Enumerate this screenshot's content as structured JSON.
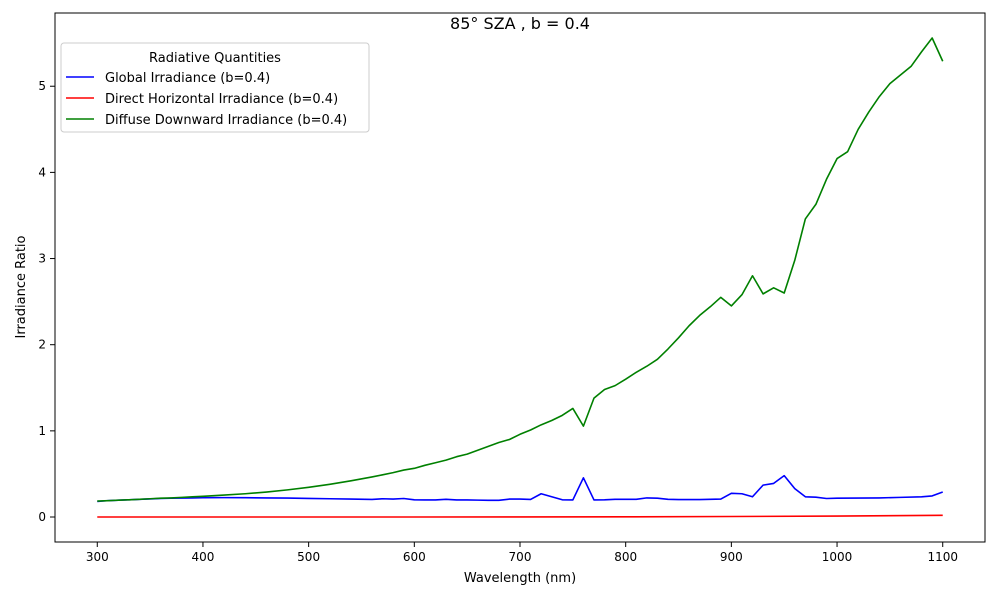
{
  "chart_data": {
    "type": "line",
    "title": "85° SZA , b = 0.4",
    "xlabel": "Wavelength (nm)",
    "ylabel": "Irradiance Ratio",
    "xlim": [
      260,
      1140
    ],
    "ylim": [
      -0.29,
      5.85
    ],
    "xticks": [
      300,
      400,
      500,
      600,
      700,
      800,
      900,
      1000,
      1100
    ],
    "yticks": [
      0,
      1,
      2,
      3,
      4,
      5
    ],
    "grid": false,
    "legend": {
      "title": "Radiative Quantities",
      "position": "top-left"
    },
    "series": [
      {
        "name": "Global Irradiance (b=0.4)",
        "color": "#0000ff",
        "x": [
          300,
          310,
          320,
          330,
          340,
          350,
          360,
          370,
          380,
          390,
          400,
          420,
          440,
          460,
          480,
          500,
          520,
          540,
          560,
          570,
          580,
          590,
          600,
          610,
          620,
          630,
          640,
          650,
          660,
          670,
          680,
          690,
          700,
          710,
          720,
          730,
          740,
          750,
          760,
          770,
          780,
          790,
          800,
          810,
          820,
          830,
          840,
          850,
          860,
          870,
          880,
          890,
          900,
          910,
          920,
          930,
          940,
          950,
          960,
          970,
          980,
          990,
          1000,
          1020,
          1040,
          1060,
          1080,
          1090,
          1100
        ],
        "y": [
          0.18,
          0.19,
          0.195,
          0.2,
          0.205,
          0.21,
          0.215,
          0.218,
          0.22,
          0.222,
          0.224,
          0.225,
          0.224,
          0.222,
          0.22,
          0.216,
          0.212,
          0.208,
          0.204,
          0.212,
          0.208,
          0.215,
          0.2,
          0.198,
          0.198,
          0.205,
          0.198,
          0.198,
          0.196,
          0.194,
          0.194,
          0.208,
          0.208,
          0.204,
          0.27,
          0.235,
          0.2,
          0.198,
          0.455,
          0.198,
          0.2,
          0.205,
          0.205,
          0.205,
          0.222,
          0.218,
          0.205,
          0.202,
          0.202,
          0.203,
          0.205,
          0.208,
          0.275,
          0.27,
          0.235,
          0.37,
          0.39,
          0.48,
          0.33,
          0.235,
          0.23,
          0.215,
          0.218,
          0.22,
          0.222,
          0.228,
          0.235,
          0.245,
          0.29
        ]
      },
      {
        "name": "Direct Horizontal Irradiance (b=0.4)",
        "color": "#ff0000",
        "x": [
          300,
          400,
          500,
          600,
          700,
          800,
          900,
          1000,
          1100
        ],
        "y": [
          0.0,
          0.0,
          0.0,
          0.0,
          0.001,
          0.002,
          0.006,
          0.011,
          0.02
        ]
      },
      {
        "name": "Diffuse Downward Irradiance (b=0.4)",
        "color": "#008000",
        "x": [
          300,
          310,
          320,
          330,
          340,
          350,
          360,
          370,
          380,
          390,
          400,
          420,
          440,
          460,
          480,
          500,
          520,
          540,
          560,
          570,
          580,
          590,
          600,
          610,
          620,
          630,
          640,
          650,
          660,
          670,
          680,
          690,
          700,
          710,
          720,
          730,
          740,
          750,
          760,
          770,
          780,
          790,
          800,
          810,
          820,
          830,
          840,
          850,
          860,
          870,
          880,
          890,
          900,
          910,
          920,
          930,
          940,
          950,
          960,
          970,
          980,
          990,
          1000,
          1010,
          1020,
          1030,
          1040,
          1050,
          1060,
          1070,
          1080,
          1090,
          1100
        ],
        "y": [
          0.185,
          0.19,
          0.195,
          0.2,
          0.205,
          0.212,
          0.218,
          0.222,
          0.228,
          0.234,
          0.24,
          0.255,
          0.27,
          0.29,
          0.315,
          0.345,
          0.38,
          0.42,
          0.465,
          0.49,
          0.515,
          0.545,
          0.565,
          0.6,
          0.63,
          0.66,
          0.7,
          0.73,
          0.775,
          0.82,
          0.865,
          0.9,
          0.96,
          1.01,
          1.07,
          1.12,
          1.18,
          1.26,
          1.055,
          1.38,
          1.48,
          1.525,
          1.6,
          1.68,
          1.75,
          1.83,
          1.95,
          2.08,
          2.22,
          2.34,
          2.44,
          2.55,
          2.45,
          2.58,
          2.8,
          2.59,
          2.66,
          2.6,
          2.98,
          3.46,
          3.63,
          3.92,
          4.16,
          4.24,
          4.5,
          4.7,
          4.88,
          5.03,
          5.13,
          5.23,
          5.4,
          5.56,
          5.29
        ]
      }
    ]
  }
}
